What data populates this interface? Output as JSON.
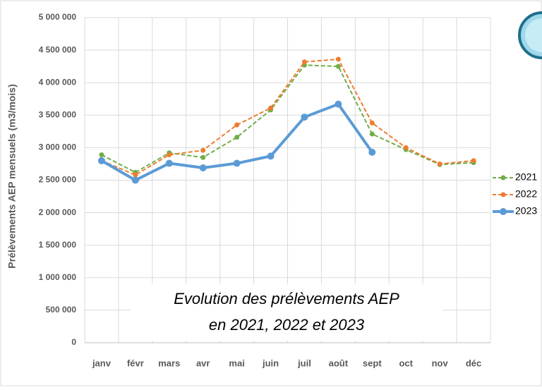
{
  "chart_data": {
    "type": "line",
    "annotation": [
      "Evolution des prélèvements AEP",
      "en 2021, 2022 et 2023"
    ],
    "y_label": "Prélèvements AEP mensuels (m3/mois)",
    "categories": [
      "janv",
      "févr",
      "mars",
      "avr",
      "mai",
      "juin",
      "juil",
      "août",
      "sept",
      "oct",
      "nov",
      "déc"
    ],
    "series": [
      {
        "name": "2021",
        "color": "#70ad47",
        "dashed": true,
        "values": [
          2890000,
          2620000,
          2920000,
          2850000,
          3160000,
          3580000,
          4270000,
          4250000,
          3210000,
          2970000,
          2740000,
          2770000
        ]
      },
      {
        "name": "2022",
        "color": "#ed7d31",
        "dashed": true,
        "values": [
          2800000,
          2580000,
          2890000,
          2960000,
          3350000,
          3610000,
          4320000,
          4360000,
          3380000,
          3000000,
          2750000,
          2800000
        ]
      },
      {
        "name": "2023",
        "color": "#5b9bd5",
        "dashed": false,
        "values": [
          2800000,
          2500000,
          2760000,
          2690000,
          2760000,
          2870000,
          3470000,
          3670000,
          2930000,
          null,
          null,
          null
        ]
      }
    ],
    "ylim": [
      0,
      5000000
    ],
    "yticks": [
      {
        "value": 0,
        "label": "0"
      },
      {
        "value": 500000,
        "label": "500 000"
      },
      {
        "value": 1000000,
        "label": "1 000 000"
      },
      {
        "value": 1500000,
        "label": "1 500 000"
      },
      {
        "value": 2000000,
        "label": "2 000 000"
      },
      {
        "value": 2500000,
        "label": "2 500 000"
      },
      {
        "value": 3000000,
        "label": "3 000 000"
      },
      {
        "value": 3500000,
        "label": "3 500 000"
      },
      {
        "value": 4000000,
        "label": "4 000 000"
      },
      {
        "value": 4500000,
        "label": "4 500 000"
      },
      {
        "value": 5000000,
        "label": "5 000 000"
      }
    ],
    "grid": true,
    "legend": "right"
  }
}
